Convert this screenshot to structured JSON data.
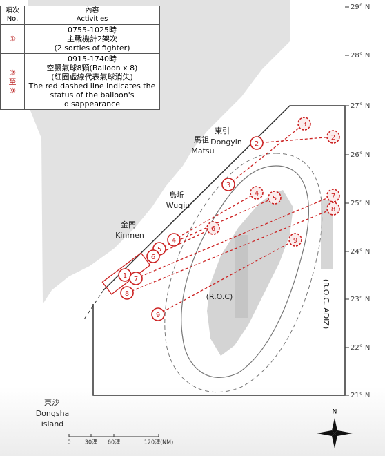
{
  "table": {
    "headers": [
      [
        "項次",
        "No."
      ],
      [
        "內容",
        "Activities"
      ]
    ],
    "rows": [
      {
        "item": [
          "①"
        ],
        "content": [
          "0755-1025時",
          "主戰機計2架次",
          "(2 sorties of fighter)"
        ]
      },
      {
        "item": [
          "②",
          "至",
          "⑨"
        ],
        "content": [
          "0915-1740時",
          "空飄氣球8顆(Balloon x 8)",
          "(紅圈虛線代表氣球消失)",
          "The red dashed line indicates the",
          "status of the balloon's",
          "disappearance"
        ]
      }
    ]
  },
  "places": [
    {
      "zh": "東引",
      "en": "Dongyin"
    },
    {
      "zh": "馬祖",
      "en": "Matsu"
    },
    {
      "zh": "烏坵",
      "en": "Wuqiu"
    },
    {
      "zh": "金門",
      "en": "Kinmen"
    },
    {
      "zh": "東沙",
      "en": "Dongsha"
    }
  ],
  "dongsha_extra": "island",
  "labels": {
    "roc": "(R.O.C)",
    "adiz": "(R.O.C. ADIZ)"
  },
  "latitudes": [
    "29° N",
    "28° N",
    "27° N",
    "26° N",
    "25° N",
    "24° N",
    "23° N",
    "22° N",
    "21° N"
  ],
  "scale": [
    "0",
    "30浬",
    "60浬",
    "120浬(NM)"
  ],
  "compass": "N",
  "markers": {
    "fighter": "1",
    "balloons": [
      "2",
      "3",
      "4",
      "5",
      "6",
      "7",
      "8",
      "9"
    ]
  }
}
